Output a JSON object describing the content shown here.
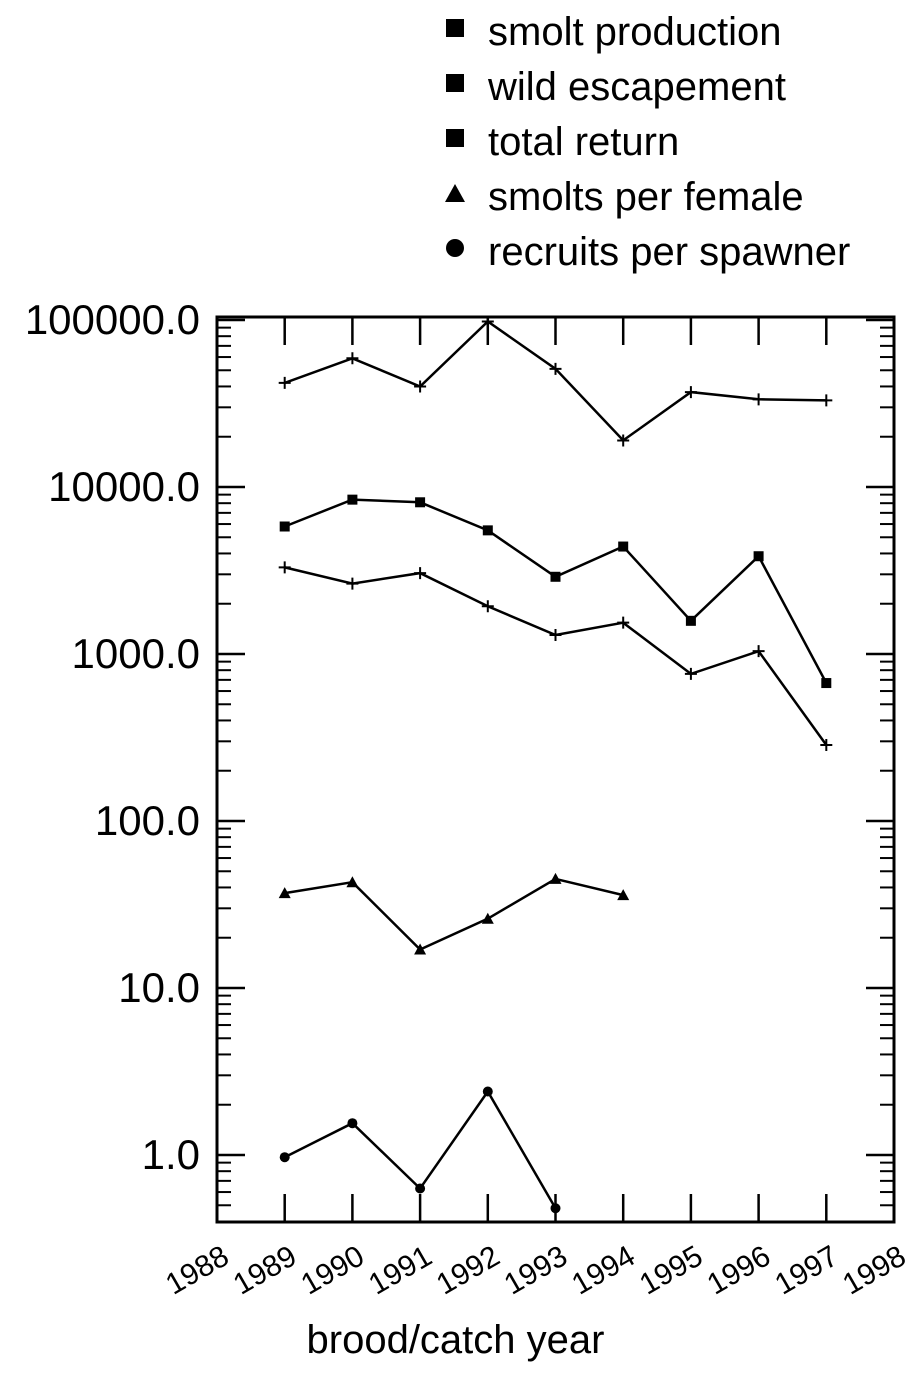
{
  "chart_data": {
    "type": "line",
    "xlabel": "brood/catch year",
    "ylabel": "",
    "yscale": "log",
    "ylim": [
      0.45,
      100000
    ],
    "xlim": [
      1988,
      1998
    ],
    "y_ticks": [
      "100000.0",
      "10000.0",
      "1000.0",
      "100.0",
      "10.0",
      "1.0"
    ],
    "y_tick_values": [
      100000,
      10000,
      1000,
      100,
      10,
      1
    ],
    "x_ticks": [
      "1988",
      "1989",
      "1990",
      "1991",
      "1992",
      "1993",
      "1994",
      "1995",
      "1996",
      "1997",
      "1998"
    ],
    "x_tick_values": [
      1988,
      1989,
      1990,
      1991,
      1992,
      1993,
      1994,
      1995,
      1996,
      1997,
      1998
    ],
    "legend_position": "top-right (above plot)",
    "legend": [
      {
        "label": "smolt production",
        "marker": "square"
      },
      {
        "label": "wild escapement",
        "marker": "square"
      },
      {
        "label": "total return",
        "marker": "square"
      },
      {
        "label": "smolts per female",
        "marker": "triangle"
      },
      {
        "label": "recruits per spawner",
        "marker": "circle"
      }
    ],
    "series": [
      {
        "marker": "plus",
        "x": [
          1989,
          1990,
          1991,
          1992,
          1993,
          1994,
          1995,
          1996,
          1997
        ],
        "y": [
          42000,
          59000,
          40000,
          98000,
          51000,
          19000,
          37000,
          33500,
          33000
        ]
      },
      {
        "marker": "square",
        "x": [
          1989,
          1990,
          1991,
          1992,
          1993,
          1994,
          1995,
          1996,
          1997
        ],
        "y": [
          5800,
          8400,
          8100,
          5500,
          2900,
          4400,
          1580,
          3850,
          670
        ]
      },
      {
        "marker": "plus",
        "x": [
          1989,
          1990,
          1991,
          1992,
          1993,
          1994,
          1995,
          1996,
          1997
        ],
        "y": [
          3300,
          2640,
          3050,
          1930,
          1300,
          1540,
          760,
          1040,
          285
        ]
      },
      {
        "marker": "triangle",
        "x": [
          1989,
          1990,
          1991,
          1992,
          1993,
          1994
        ],
        "y": [
          37,
          43,
          17,
          26,
          45,
          36
        ]
      },
      {
        "marker": "circle",
        "x": [
          1989,
          1990,
          1991,
          1992,
          1993
        ],
        "y": [
          0.97,
          1.55,
          0.63,
          2.4,
          0.48
        ]
      }
    ]
  }
}
